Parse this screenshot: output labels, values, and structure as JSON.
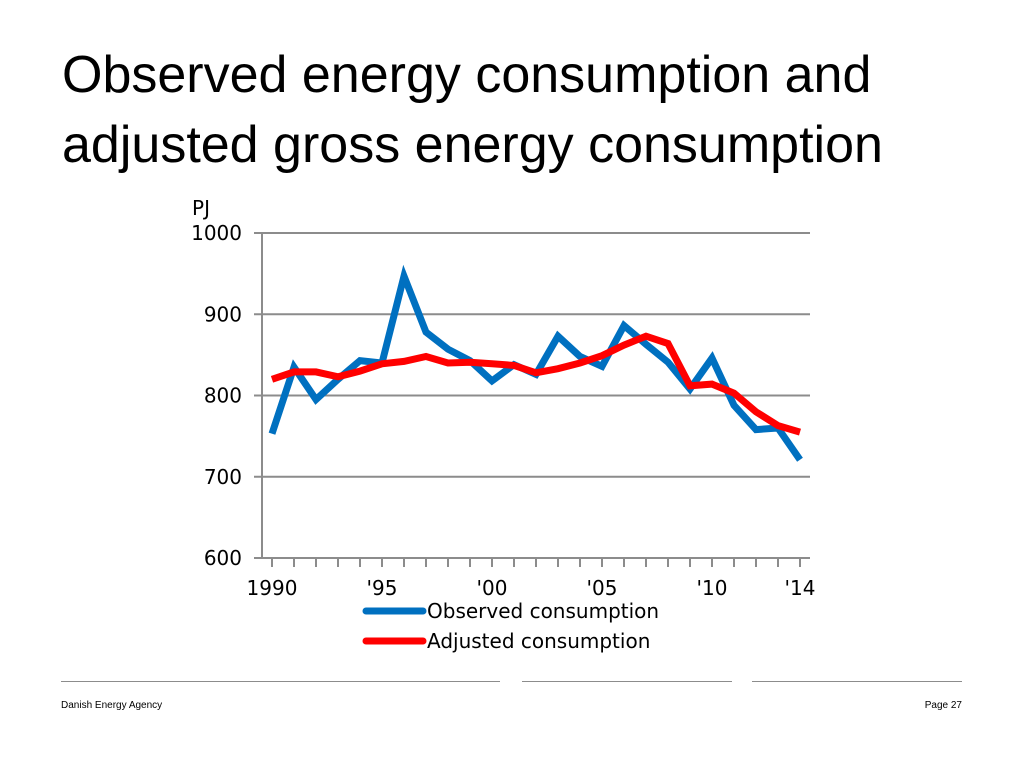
{
  "slide": {
    "title_line1": "Observed energy consumption and",
    "title_line2": "adjusted gross energy consumption"
  },
  "footer": {
    "organization": "Danish Energy Agency",
    "page": "Page 27"
  },
  "chart_data": {
    "type": "line",
    "title": "",
    "ylabel": "PJ",
    "xlabel": "",
    "ylim": [
      600,
      1000
    ],
    "yticks": [
      "600",
      "700",
      "800",
      "900",
      "1000"
    ],
    "xtick_labels": [
      {
        "year": 1990,
        "label": "1990"
      },
      {
        "year": 1995,
        "label": "'95"
      },
      {
        "year": 2000,
        "label": "'00"
      },
      {
        "year": 2005,
        "label": "'05"
      },
      {
        "year": 2010,
        "label": "'10"
      },
      {
        "year": 2014,
        "label": "'14"
      }
    ],
    "x": [
      1990,
      1991,
      1992,
      1993,
      1994,
      1995,
      1996,
      1997,
      1998,
      1999,
      2000,
      2001,
      2002,
      2003,
      2004,
      2005,
      2006,
      2007,
      2008,
      2009,
      2010,
      2011,
      2012,
      2013,
      2014
    ],
    "grid": true,
    "legend_position": "bottom",
    "series": [
      {
        "name": "Observed consumption",
        "color": "#0070C0",
        "values": [
          753,
          835,
          795,
          820,
          843,
          840,
          947,
          878,
          857,
          843,
          818,
          838,
          826,
          873,
          848,
          836,
          886,
          863,
          841,
          808,
          846,
          788,
          758,
          760,
          721
        ]
      },
      {
        "name": "Adjusted consumption",
        "color": "#FF0000",
        "values": [
          820,
          829,
          829,
          823,
          830,
          839,
          842,
          848,
          840,
          841,
          839,
          837,
          828,
          833,
          840,
          849,
          862,
          873,
          864,
          812,
          814,
          803,
          780,
          763,
          755
        ]
      }
    ]
  }
}
